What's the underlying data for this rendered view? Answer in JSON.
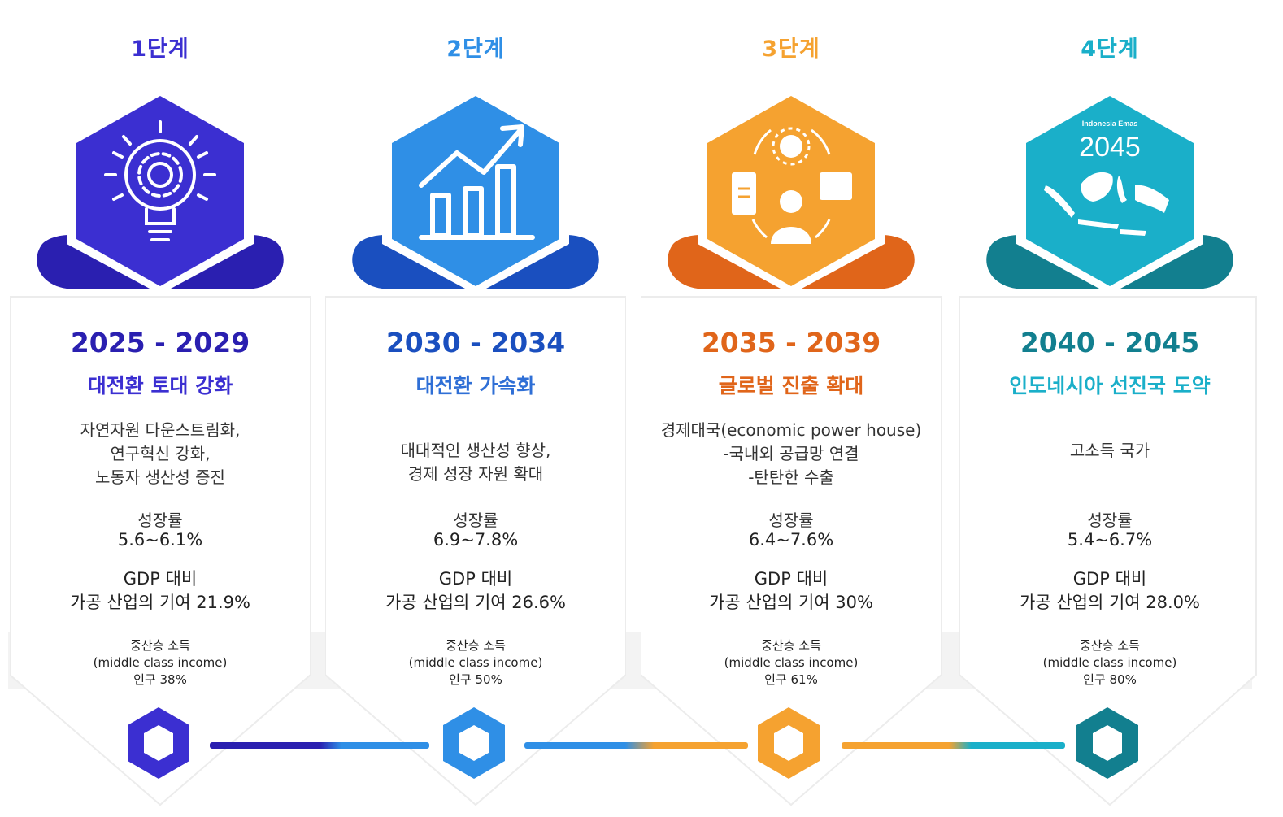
{
  "stages": [
    {
      "label": "1단계",
      "years": "2025 - 2029",
      "title": "대전환 토대 강화",
      "description": "자연자원 다운스트림화,\n연구혁신 강화,\n노동자 생산성 증진",
      "growth_label": "성장률",
      "growth_value": "5.6~6.1%",
      "gdp_label": "GDP 대비",
      "gdp_value": "가공 산업의 기여 21.9%",
      "middle_class_line1": "중산층 소득",
      "middle_class_line2": "(middle class income)",
      "middle_class_line3": "인구 38%",
      "icon": "lightbulb-gear-icon",
      "color": "#3b2fd1",
      "dark_color": "#2a1fb0"
    },
    {
      "label": "2단계",
      "years": "2030 - 2034",
      "title": "대전환 가속화",
      "description": "대대적인 생산성 향상,\n경제 성장 자원 확대",
      "growth_label": "성장률",
      "growth_value": "6.9~7.8%",
      "gdp_label": "GDP 대비",
      "gdp_value": "가공 산업의 기여 26.6%",
      "middle_class_line1": "중산층 소득",
      "middle_class_line2": "(middle class income)",
      "middle_class_line3": "인구 50%",
      "icon": "growth-chart-icon",
      "color": "#2f8fe6",
      "dark_color": "#1a4fbf"
    },
    {
      "label": "3단계",
      "years": "2035 - 2039",
      "title": "글로벌 진출 확대",
      "description": "경제대국(economic power house)\n-국내외 공급망 연결\n-탄탄한 수출",
      "growth_label": "성장률",
      "growth_value": "6.4~7.6%",
      "gdp_label": "GDP 대비",
      "gdp_value": "가공 산업의 기여 30%",
      "middle_class_line1": "중산층 소득",
      "middle_class_line2": "(middle class income)",
      "middle_class_line3": "인구 61%",
      "icon": "supply-chain-icon",
      "color": "#f5a230",
      "dark_color": "#e0651a"
    },
    {
      "label": "4단계",
      "years": "2040 - 2045",
      "title": "인도네시아 선진국 도약",
      "description": "고소득 국가",
      "growth_label": "성장률",
      "growth_value": "5.4~6.7%",
      "gdp_label": "GDP 대비",
      "gdp_value": "가공 산업의 기여 28.0%",
      "middle_class_line1": "중산층 소득",
      "middle_class_line2": "(middle class income)",
      "middle_class_line3": "인구 80%",
      "icon": "indonesia-map-icon",
      "icon_text_small": "Indonesia Emas",
      "icon_text_big": "2045",
      "color": "#1aafc9",
      "dark_color": "#127f8f"
    }
  ]
}
